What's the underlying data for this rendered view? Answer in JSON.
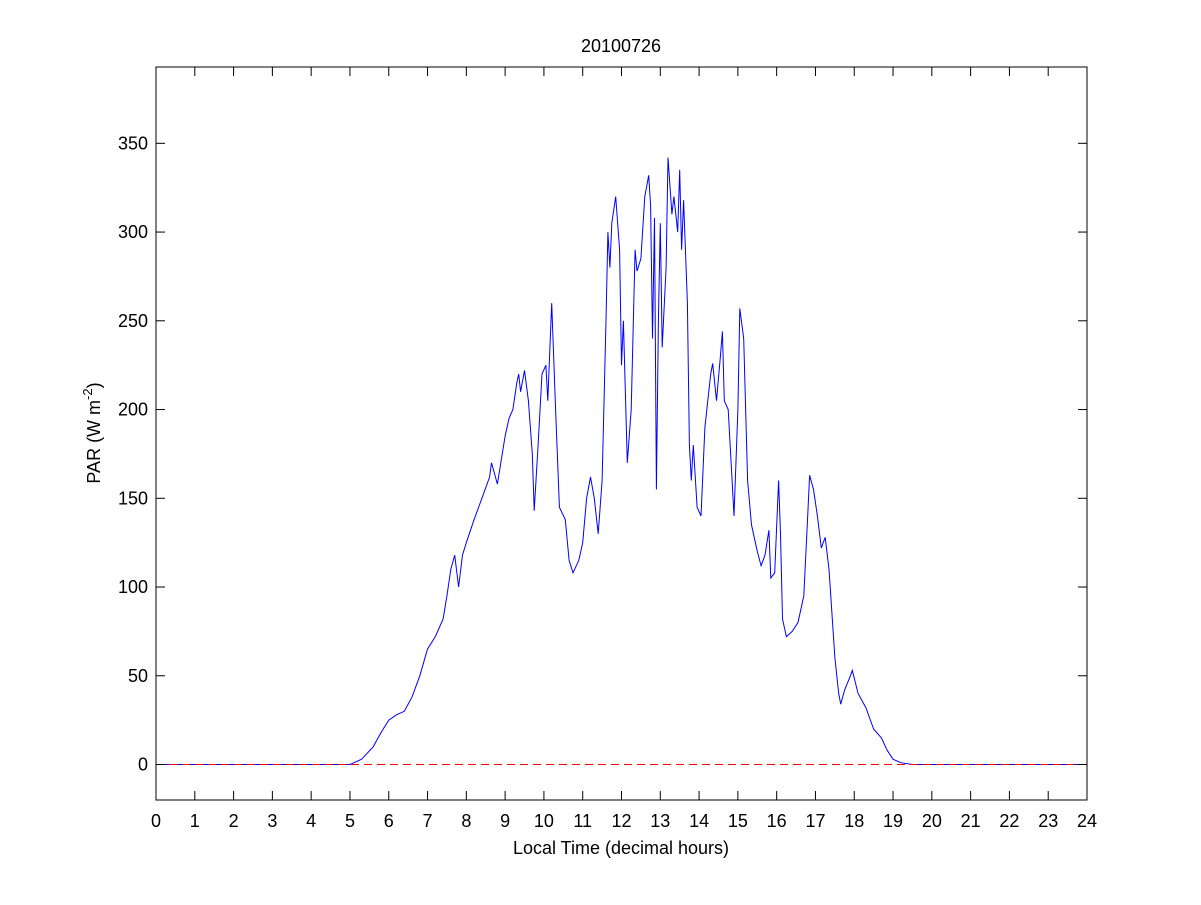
{
  "chart_data": {
    "type": "line",
    "title": "20100726",
    "xlabel": "Local Time (decimal hours)",
    "ylabel": [
      "PAR (W m",
      "-2",
      ")"
    ],
    "xlim": [
      0,
      24
    ],
    "xticks": [
      0,
      1,
      2,
      3,
      4,
      5,
      6,
      7,
      8,
      9,
      10,
      11,
      12,
      13,
      14,
      15,
      16,
      17,
      18,
      19,
      20,
      21,
      22,
      23,
      24
    ],
    "ylim": [
      -20,
      393
    ],
    "yticks": [
      0,
      50,
      100,
      150,
      200,
      250,
      300,
      350
    ],
    "series": [
      {
        "color": "#0000ff",
        "dashed": false,
        "x": [
          0,
          5.0,
          5.3,
          5.6,
          5.8,
          6.0,
          6.2,
          6.4,
          6.6,
          6.8,
          7.0,
          7.2,
          7.4,
          7.5,
          7.6,
          7.7,
          7.8,
          7.9,
          8.0,
          8.2,
          8.4,
          8.6,
          8.65,
          8.8,
          9.0,
          9.1,
          9.2,
          9.3,
          9.35,
          9.4,
          9.5,
          9.6,
          9.7,
          9.75,
          9.85,
          9.95,
          10.05,
          10.1,
          10.2,
          10.3,
          10.4,
          10.55,
          10.65,
          10.75,
          10.9,
          11.0,
          11.1,
          11.2,
          11.3,
          11.4,
          11.5,
          11.6,
          11.65,
          11.7,
          11.75,
          11.85,
          11.95,
          12.0,
          12.05,
          12.15,
          12.25,
          12.35,
          12.4,
          12.5,
          12.6,
          12.7,
          12.75,
          12.8,
          12.85,
          12.9,
          12.95,
          13.0,
          13.05,
          13.15,
          13.2,
          13.3,
          13.35,
          13.45,
          13.5,
          13.55,
          13.6,
          13.7,
          13.75,
          13.8,
          13.85,
          13.95,
          14.05,
          14.15,
          14.3,
          14.35,
          14.45,
          14.55,
          14.6,
          14.65,
          14.75,
          14.85,
          14.9,
          15.0,
          15.05,
          15.15,
          15.25,
          15.35,
          15.5,
          15.6,
          15.7,
          15.8,
          15.85,
          15.95,
          16.05,
          16.1,
          16.15,
          16.25,
          16.4,
          16.55,
          16.7,
          16.8,
          16.85,
          16.95,
          17.05,
          17.15,
          17.25,
          17.35,
          17.5,
          17.6,
          17.65,
          17.75,
          17.9,
          17.95,
          18.1,
          18.3,
          18.5,
          18.7,
          18.85,
          19.0,
          19.2,
          19.5,
          24
        ],
        "values": [
          0,
          0,
          3,
          10,
          18,
          25,
          28,
          30,
          38,
          50,
          65,
          72,
          82,
          95,
          110,
          118,
          100,
          118,
          125,
          138,
          150,
          162,
          170,
          158,
          185,
          195,
          200,
          215,
          220,
          210,
          222,
          205,
          175,
          143,
          180,
          220,
          225,
          205,
          260,
          200,
          145,
          138,
          115,
          108,
          115,
          125,
          150,
          162,
          150,
          130,
          160,
          250,
          300,
          280,
          305,
          320,
          290,
          225,
          250,
          170,
          200,
          290,
          278,
          285,
          320,
          332,
          315,
          240,
          308,
          155,
          250,
          305,
          235,
          280,
          342,
          310,
          320,
          300,
          335,
          290,
          318,
          260,
          180,
          160,
          180,
          145,
          140,
          190,
          220,
          226,
          205,
          230,
          244,
          205,
          200,
          160,
          140,
          200,
          257,
          240,
          160,
          135,
          120,
          112,
          118,
          132,
          105,
          108,
          160,
          130,
          82,
          72,
          75,
          80,
          95,
          140,
          163,
          155,
          140,
          122,
          128,
          110,
          60,
          40,
          34,
          42,
          50,
          53,
          40,
          32,
          20,
          15,
          8,
          3,
          1,
          0,
          0
        ]
      },
      {
        "color": "#ff0000",
        "dashed": true,
        "x": [
          0,
          24
        ],
        "values": [
          0,
          0
        ]
      }
    ]
  }
}
